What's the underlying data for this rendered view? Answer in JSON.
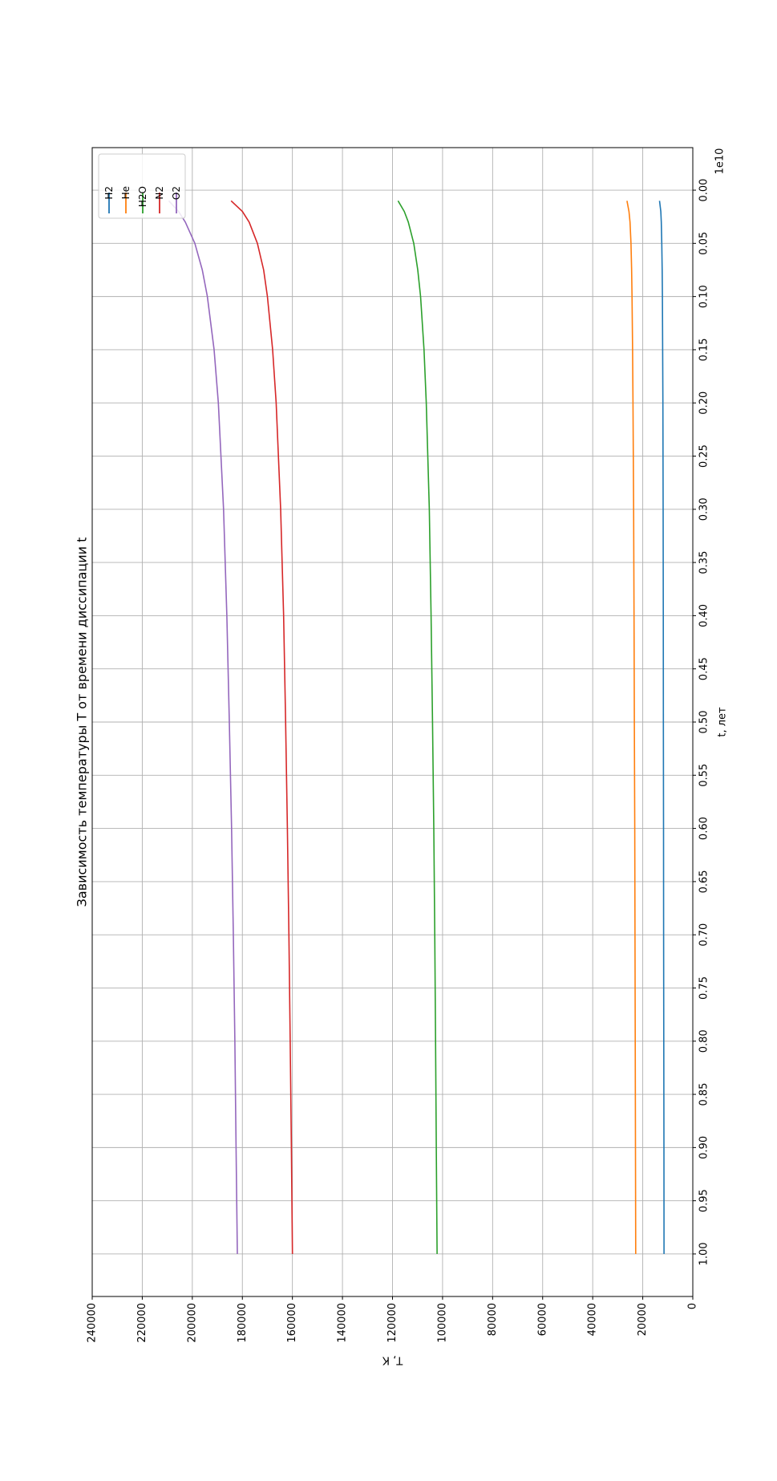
{
  "chart_data": {
    "type": "line",
    "title": "Зависимость температуры T от времени диссипации t",
    "xlabel": "t, лет",
    "ylabel": "T, К",
    "x_offset_text": "1e10",
    "xlim": [
      -0.04,
      1.04
    ],
    "ylim": [
      0,
      240000
    ],
    "x_ticks": [
      0.0,
      0.05,
      0.1,
      0.15,
      0.2,
      0.25,
      0.3,
      0.35,
      0.4,
      0.45,
      0.5,
      0.55,
      0.6,
      0.65,
      0.7,
      0.75,
      0.8,
      0.85,
      0.9,
      0.95,
      1.0
    ],
    "x_tick_labels": [
      "0.00",
      "0.05",
      "0.10",
      "0.15",
      "0.20",
      "0.25",
      "0.30",
      "0.35",
      "0.40",
      "0.45",
      "0.50",
      "0.55",
      "0.60",
      "0.65",
      "0.70",
      "0.75",
      "0.80",
      "0.85",
      "0.90",
      "0.95",
      "1.00"
    ],
    "y_ticks": [
      0,
      20000,
      40000,
      60000,
      80000,
      100000,
      120000,
      140000,
      160000,
      180000,
      200000,
      220000,
      240000
    ],
    "y_tick_labels": [
      "0",
      "20000",
      "40000",
      "60000",
      "80000",
      "100000",
      "120000",
      "140000",
      "160000",
      "180000",
      "200000",
      "220000",
      "240000"
    ],
    "grid": true,
    "legend_position": "upper-right",
    "x": [
      0.01,
      0.02,
      0.03,
      0.05,
      0.075,
      0.1,
      0.15,
      0.2,
      0.3,
      0.4,
      0.5,
      0.6,
      0.7,
      0.8,
      0.9,
      1.0
    ],
    "series": [
      {
        "name": "H2",
        "color": "#1f77b4",
        "values": [
          13300,
          12800,
          12600,
          12400,
          12250,
          12150,
          12050,
          11950,
          11850,
          11800,
          11750,
          11700,
          11650,
          11600,
          11550,
          11500
        ]
      },
      {
        "name": "He",
        "color": "#ff7f0e",
        "values": [
          26300,
          25500,
          25100,
          24700,
          24450,
          24300,
          24050,
          23900,
          23650,
          23500,
          23350,
          23200,
          23100,
          23000,
          22900,
          22800
        ]
      },
      {
        "name": "H2O",
        "color": "#2ca02c",
        "values": [
          117800,
          115300,
          113700,
          111500,
          109900,
          108800,
          107400,
          106500,
          105300,
          104600,
          104000,
          103500,
          103100,
          102800,
          102500,
          102200
        ]
      },
      {
        "name": "N2",
        "color": "#d62728",
        "values": [
          184500,
          180000,
          177300,
          174000,
          171500,
          170000,
          167900,
          166500,
          164700,
          163500,
          162700,
          162000,
          161400,
          160900,
          160400,
          160000
        ]
      },
      {
        "name": "O2",
        "color": "#9467bd",
        "values": [
          209400,
          205500,
          202800,
          199000,
          196000,
          194000,
          191300,
          189600,
          187500,
          186200,
          185200,
          184300,
          183600,
          183000,
          182500,
          182000
        ]
      }
    ]
  }
}
